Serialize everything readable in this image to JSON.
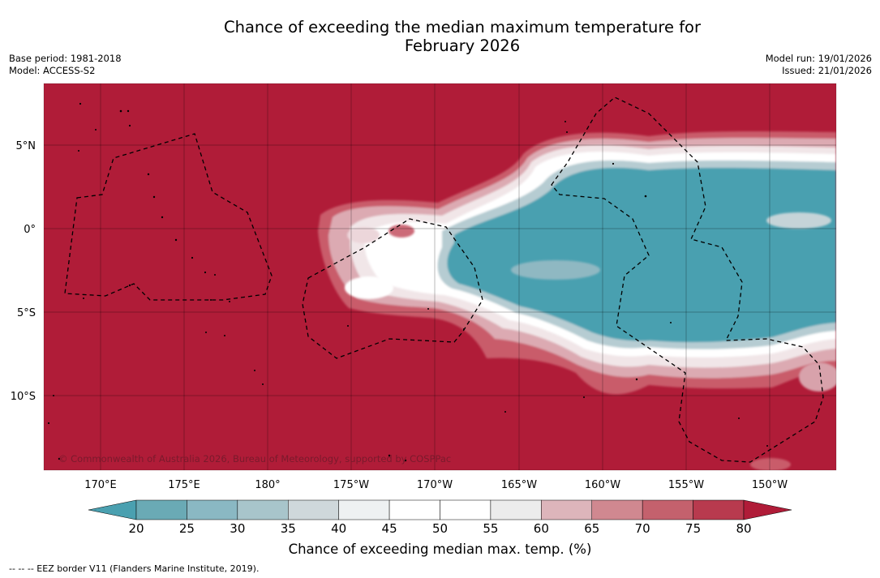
{
  "title": {
    "line1": "Chance of exceeding the median maximum temperature for",
    "line2": "February 2026"
  },
  "meta": {
    "base_period": "Base period: 1981-2018",
    "model": "Model: ACCESS-S2",
    "model_run": "Model run: 19/01/2026",
    "issued": "Issued: 21/01/2026"
  },
  "map": {
    "latitude_labels": [
      "5°N",
      "0°",
      "5°S",
      "10°S"
    ],
    "longitude_labels": [
      "170°E",
      "175°E",
      "180°",
      "175°W",
      "170°W",
      "165°W",
      "160°W",
      "155°W",
      "150°W"
    ],
    "copyright": "© Commonwealth of Australia 2026, Bureau of Meteorology, supported by COSPPac",
    "colors": {
      "warm": "#b01c38",
      "cool": "#4aa0b0",
      "grid": "#000000"
    }
  },
  "colorbar": {
    "ticks": [
      "20",
      "25",
      "30",
      "35",
      "40",
      "45",
      "50",
      "55",
      "60",
      "65",
      "70",
      "75",
      "80"
    ],
    "colors": [
      "#4aa0b0",
      "#6aaab5",
      "#8ab8c3",
      "#a8c5cb",
      "#cfd8db",
      "#eef1f2",
      "#ffffff",
      "#ffffff",
      "#ececec",
      "#ddb5bb",
      "#d08890",
      "#c4616d",
      "#b83a4e",
      "#b01c38"
    ],
    "label": "Chance of exceeding median max. temp. (%)"
  },
  "legend": {
    "eez": "--  --  -- EEZ border V11 (Flanders Marine Institute, 2019)."
  }
}
